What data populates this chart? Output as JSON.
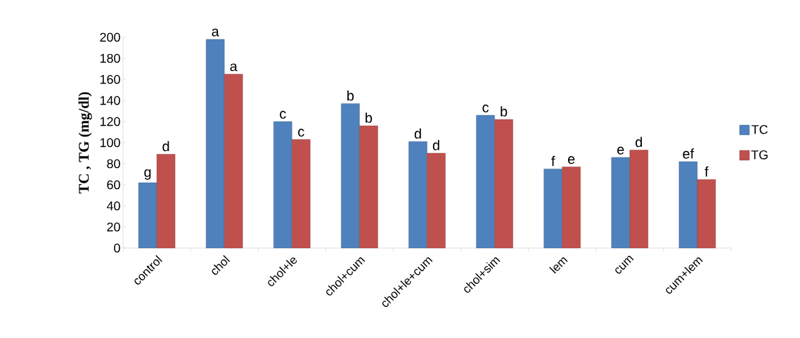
{
  "chart_data": {
    "type": "bar",
    "ylabel": "TC , TG (mg/dl)",
    "categories": [
      "control",
      "chol",
      "chol+le",
      "chol+cum",
      "chol+le+cum",
      "chol+sim",
      "lem",
      "cum",
      "cum+lem"
    ],
    "series": [
      {
        "name": "TC",
        "color": "#4f81bd",
        "values": [
          62,
          198,
          120,
          137,
          101,
          126,
          75,
          86,
          82
        ],
        "value_labels": [
          "g",
          "a",
          "c",
          "b",
          "d",
          "c",
          "f",
          "e",
          "ef"
        ]
      },
      {
        "name": "TG",
        "color": "#c0504d",
        "values": [
          89,
          165,
          103,
          116,
          90,
          122,
          77,
          93,
          65
        ],
        "value_labels": [
          "d",
          "a",
          "c",
          "b",
          "d",
          "b",
          "e",
          "d",
          "f"
        ]
      }
    ],
    "ylim": [
      0,
      200
    ],
    "yticks": [
      0,
      20,
      40,
      60,
      80,
      100,
      120,
      140,
      160,
      180,
      200
    ],
    "grid": false,
    "legend": "right"
  }
}
